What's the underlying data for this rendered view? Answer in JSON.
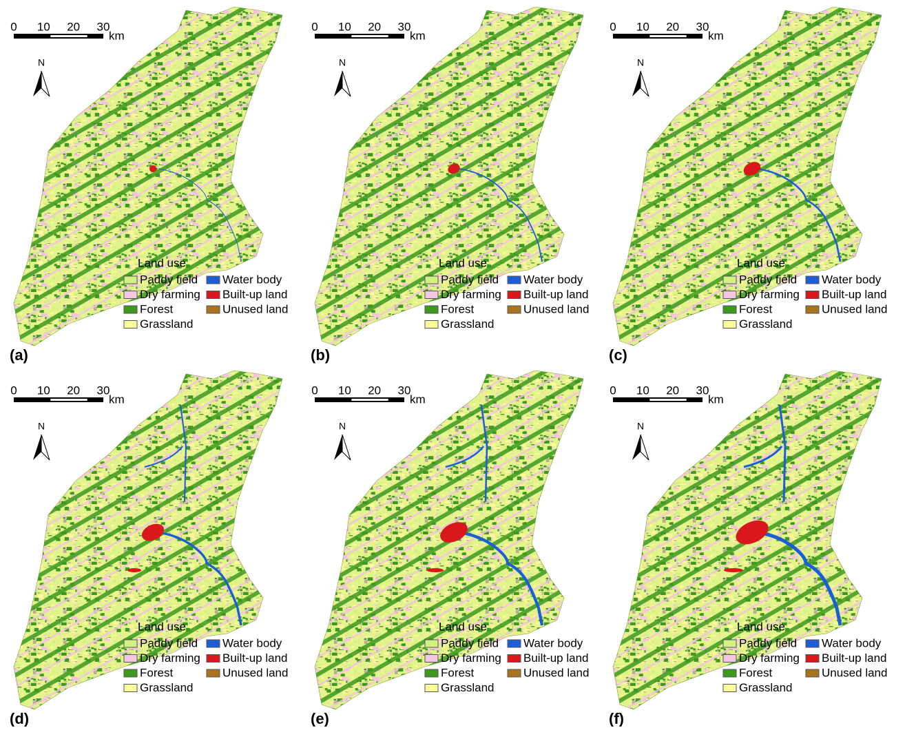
{
  "panels": [
    {
      "label": "(a)"
    },
    {
      "label": "(b)"
    },
    {
      "label": "(c)"
    },
    {
      "label": "(d)"
    },
    {
      "label": "(e)"
    },
    {
      "label": "(f)"
    }
  ],
  "scale_bar": {
    "ticks": [
      0,
      10,
      20,
      30
    ],
    "unit": "km"
  },
  "north_arrow": "N",
  "legend": {
    "title": "Land use",
    "items": [
      {
        "name": "Paddy field",
        "color": "#d2f283"
      },
      {
        "name": "Dry farming",
        "color": "#f5c6e1"
      },
      {
        "name": "Forest",
        "color": "#3d9a1f"
      },
      {
        "name": "Grassland",
        "color": "#fdfb9b"
      },
      {
        "name": "Water body",
        "color": "#1b5fd6"
      },
      {
        "name": "Built-up land",
        "color": "#d8181a"
      },
      {
        "name": "Unused land",
        "color": "#a8731f"
      }
    ]
  }
}
